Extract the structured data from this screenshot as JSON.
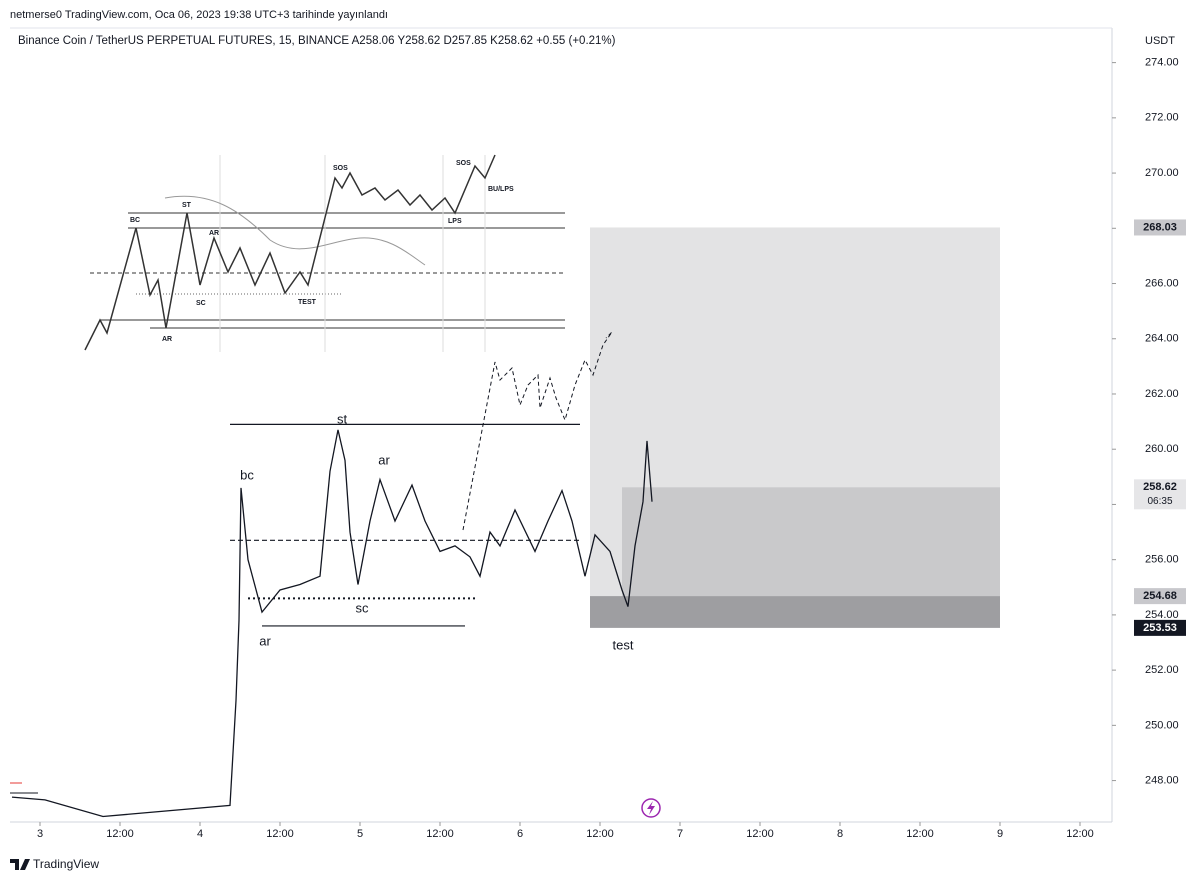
{
  "header": {
    "published": "netmerse0 TradingView.com, Oca 06, 2023 19:38 UTC+3 tarihinde yayınlandı",
    "legend": "Binance Coin / TetherUS PERPETUAL FUTURES, 15, BINANCE  A258.06  Y258.62  D257.85  K258.62  +0.55 (+0.21%)"
  },
  "chart_data": {
    "type": "line",
    "currency": "USDT",
    "color": "#131722",
    "x": [
      -4.2,
      0.75,
      9.45,
      28.5,
      29.4,
      29.85,
      30.15,
      31.2,
      33.3,
      36,
      39,
      42,
      43.5,
      44.7,
      45.75,
      46.5,
      47.7,
      49.5,
      51,
      53.25,
      55.8,
      57.75,
      60,
      62.25,
      64.5,
      66,
      67.5,
      69,
      71.25,
      74.25,
      76.2,
      78.3,
      79.8,
      81.75,
      83.25,
      85.5,
      87.3,
      88.2,
      89.25,
      90.45,
      91.05,
      91.8
    ],
    "values": [
      247.4,
      247.3,
      246.7,
      247.1,
      250.9,
      253.8,
      258.6,
      256.0,
      254.1,
      254.9,
      255.1,
      255.4,
      259.2,
      260.7,
      259.6,
      257.0,
      255.1,
      257.4,
      258.9,
      257.4,
      258.7,
      257.4,
      256.3,
      256.5,
      256.1,
      255.4,
      257.0,
      256.5,
      257.8,
      256.3,
      257.4,
      258.5,
      257.4,
      255.4,
      256.9,
      256.3,
      254.9,
      254.3,
      256.5,
      258.1,
      260.3,
      258.1
    ],
    "xlim": [
      -4.5,
      160.5
    ],
    "xticks": [
      {
        "value": 0,
        "label": "3"
      },
      {
        "value": 12,
        "label": "12:00"
      },
      {
        "value": 24,
        "label": "4"
      },
      {
        "value": 36,
        "label": "12:00"
      },
      {
        "value": 48,
        "label": "5"
      },
      {
        "value": 60,
        "label": "12:00"
      },
      {
        "value": 72,
        "label": "6"
      },
      {
        "value": 84,
        "label": "12:00"
      },
      {
        "value": 96,
        "label": "7"
      },
      {
        "value": 108,
        "label": "12:00"
      },
      {
        "value": 120,
        "label": "8"
      },
      {
        "value": 132,
        "label": "12:00"
      },
      {
        "value": 144,
        "label": "9"
      },
      {
        "value": 156,
        "label": "12:00"
      }
    ],
    "ylim": [
      246.5,
      275
    ],
    "yticks": [
      {
        "value": 248,
        "label": "248.00"
      },
      {
        "value": 250,
        "label": "250.00"
      },
      {
        "value": 252,
        "label": "252.00"
      },
      {
        "value": 254,
        "label": "254.00"
      },
      {
        "value": 256,
        "label": "256.00"
      },
      {
        "value": 258,
        "label": "258.00"
      },
      {
        "value": 260,
        "label": "260.00"
      },
      {
        "value": 262,
        "label": "262.00"
      },
      {
        "value": 264,
        "label": "264.00"
      },
      {
        "value": 266,
        "label": "266.00"
      },
      {
        "value": 268,
        "label": "268.00"
      },
      {
        "value": 270,
        "label": "270.00"
      },
      {
        "value": 272,
        "label": "272.00"
      },
      {
        "value": 274,
        "label": "274.00"
      }
    ],
    "price_tags": [
      {
        "value": 268.03,
        "color": "#c8c8cc"
      },
      {
        "value": 258.62,
        "color": "#e6e6e8",
        "countdown": "06:35"
      },
      {
        "value": 254.68,
        "color": "#c8c8cc"
      },
      {
        "value": 253.53,
        "color": "#131722"
      }
    ],
    "zones": [
      {
        "x": [
          82.5,
          144
        ],
        "low": 253.53,
        "high": 268.03,
        "color": "#dededf"
      },
      {
        "x": [
          87.3,
          144
        ],
        "low": 254.68,
        "high": 258.62,
        "color": "#c4c4c7"
      },
      {
        "x": [
          82.5,
          144
        ],
        "low": 253.53,
        "high": 254.68,
        "color": "#929295"
      }
    ],
    "levels": [
      {
        "value": 260.9,
        "x": [
          28.5,
          81
        ],
        "style": "solid"
      },
      {
        "value": 256.7,
        "x": [
          28.5,
          81
        ],
        "style": "dashed"
      },
      {
        "value": 254.6,
        "x": [
          31.2,
          65.25
        ],
        "style": "dotted"
      },
      {
        "value": 253.6,
        "x": [
          33.3,
          63.75
        ],
        "style": "solid"
      }
    ],
    "annotations": [
      "bc",
      "st",
      "ar",
      "sc",
      "ar",
      "test"
    ]
  },
  "inset": {
    "labels": [
      "BC",
      "ST",
      "AR",
      "SC",
      "TEST",
      "AR",
      "SOS",
      "LPS",
      "SOS",
      "BU/LPS"
    ]
  },
  "footer": {
    "brand": "TradingView"
  }
}
